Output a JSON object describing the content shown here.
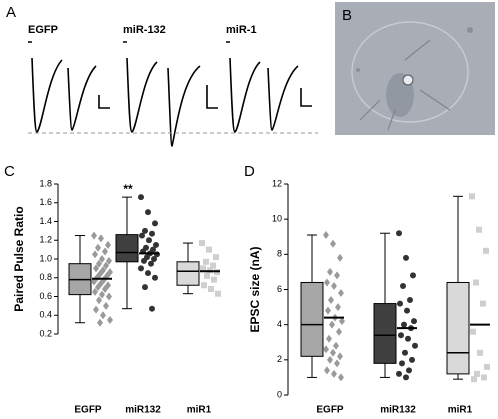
{
  "panel_labels": [
    "A",
    "B",
    "C",
    "D"
  ],
  "panel_a": {
    "labels": [
      "EGFP",
      "miR-132",
      "miR-1"
    ]
  },
  "chart_data": [
    {
      "type": "box",
      "ylabel": "Paired Pulse Ratio",
      "annotation": "**",
      "categories": [
        "EGFP",
        "miR132",
        "miR1"
      ],
      "ylim": [
        0.2,
        1.8
      ],
      "yticks": [
        0.2,
        0.4,
        0.6,
        0.8,
        {
          "value": 1,
          "label": "1.0"
        },
        1.2,
        1.4,
        1.6,
        1.8
      ],
      "groups": [
        {
          "color": "#a6a6a6",
          "point_color": "#9a9a9a",
          "marker": "diamond",
          "whisker_low": 0.32,
          "q1": 0.62,
          "median": 0.78,
          "q3": 0.95,
          "whisker_high": 1.25,
          "mean": 0.79,
          "points": [
            1.25,
            1.22,
            1.15,
            1.12,
            1.08,
            1.05,
            1.0,
            0.98,
            0.95,
            0.93,
            0.9,
            0.88,
            0.86,
            0.84,
            0.82,
            0.8,
            0.78,
            0.76,
            0.74,
            0.72,
            0.7,
            0.68,
            0.65,
            0.62,
            0.6,
            0.56,
            0.5,
            0.46,
            0.4,
            0.35,
            0.32
          ]
        },
        {
          "color": "#404040",
          "point_color": "#333333",
          "marker": "circle",
          "whisker_low": 0.47,
          "q1": 0.97,
          "median": 1.07,
          "q3": 1.26,
          "whisker_high": 1.66,
          "mean": 1.06,
          "points": [
            1.66,
            1.5,
            1.38,
            1.3,
            1.27,
            1.25,
            1.2,
            1.15,
            1.12,
            1.1,
            1.08,
            1.06,
            1.05,
            1.02,
            1.0,
            0.98,
            0.95,
            0.9,
            0.85,
            0.8,
            0.7,
            0.47
          ]
        },
        {
          "color": "#d9d9d9",
          "point_color": "#cfcfcf",
          "marker": "square",
          "whisker_low": 0.63,
          "q1": 0.72,
          "median": 0.87,
          "q3": 0.97,
          "whisker_high": 1.17,
          "mean": 0.87,
          "points": [
            1.17,
            1.1,
            1.02,
            0.97,
            0.93,
            0.9,
            0.88,
            0.86,
            0.82,
            0.78,
            0.72,
            0.68,
            0.63
          ]
        }
      ]
    },
    {
      "type": "box",
      "ylabel": "EPSC size (nA)",
      "categories": [
        "EGFP",
        "miR132",
        "miR1"
      ],
      "ylim": [
        0,
        12
      ],
      "yticks": [
        0,
        2,
        4,
        6,
        8,
        10,
        12
      ],
      "groups": [
        {
          "color": "#a6a6a6",
          "point_color": "#9a9a9a",
          "marker": "diamond",
          "whisker_low": 1.0,
          "q1": 2.2,
          "median": 4.0,
          "q3": 6.4,
          "whisker_high": 9.1,
          "mean": 4.4,
          "points": [
            9.1,
            8.6,
            7.8,
            7.0,
            6.8,
            6.4,
            6.2,
            5.8,
            5.4,
            5.0,
            4.8,
            4.4,
            4.2,
            4.0,
            3.6,
            3.2,
            2.8,
            2.6,
            2.4,
            2.2,
            2.0,
            1.8,
            1.4,
            1.2,
            1.0
          ]
        },
        {
          "color": "#404040",
          "point_color": "#333333",
          "marker": "circle",
          "whisker_low": 1.0,
          "q1": 1.8,
          "median": 3.4,
          "q3": 5.2,
          "whisker_high": 9.2,
          "mean": 3.8,
          "points": [
            9.2,
            7.8,
            6.8,
            6.2,
            5.4,
            5.2,
            4.8,
            4.2,
            4.0,
            3.8,
            3.4,
            3.2,
            2.8,
            2.4,
            2.0,
            1.8,
            1.4,
            1.2,
            1.0
          ]
        },
        {
          "color": "#d9d9d9",
          "point_color": "#cfcfcf",
          "marker": "square",
          "whisker_low": 0.9,
          "q1": 1.2,
          "median": 2.4,
          "q3": 6.4,
          "whisker_high": 11.3,
          "mean": 4.0,
          "points": [
            11.3,
            9.4,
            8.2,
            6.4,
            5.2,
            3.6,
            2.4,
            1.6,
            1.2,
            1.0,
            0.9
          ]
        }
      ]
    }
  ]
}
